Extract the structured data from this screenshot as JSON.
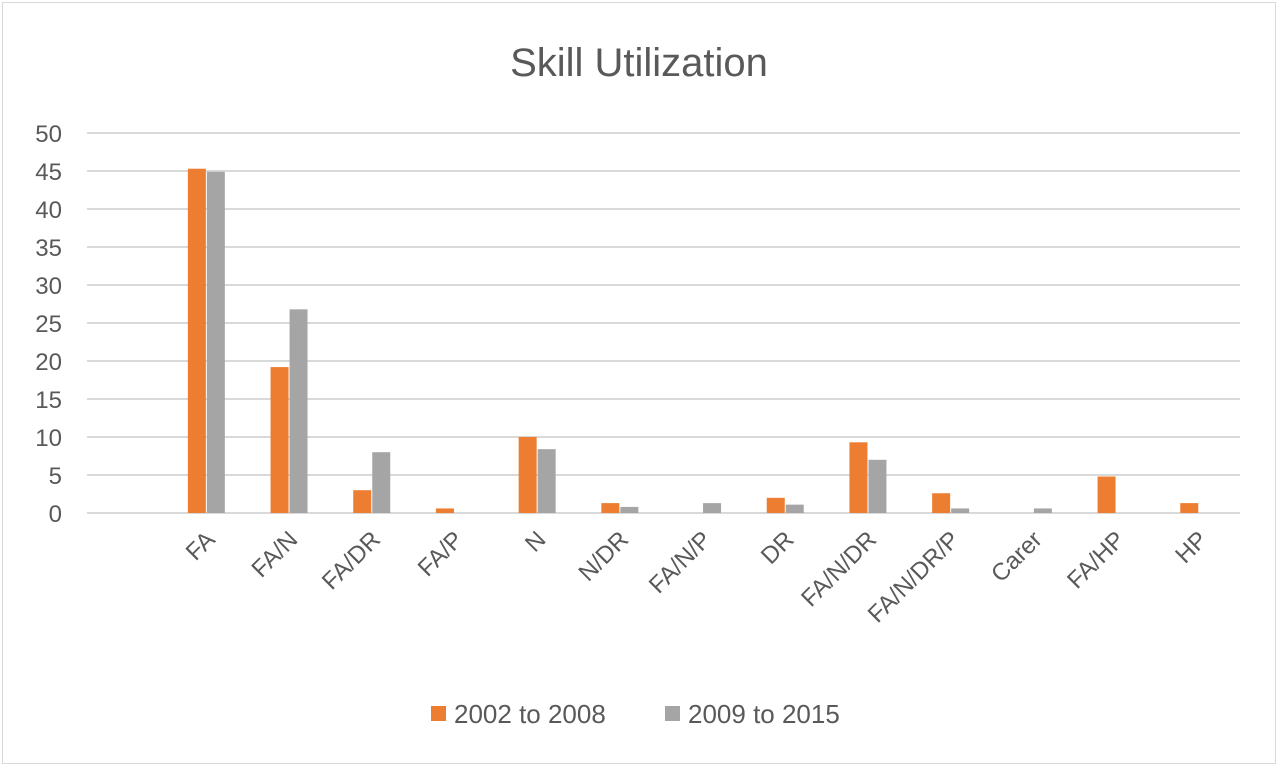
{
  "chart_data": {
    "type": "bar",
    "title": "Skill Utilization",
    "xlabel": "",
    "ylabel": "",
    "ylim": [
      0,
      50
    ],
    "yticks": [
      0,
      5,
      10,
      15,
      20,
      25,
      30,
      35,
      40,
      45,
      50
    ],
    "categories": [
      "FA",
      "FA/N",
      "FA/DR",
      "FA/P",
      "N",
      "N/DR",
      "FA/N/P",
      "DR",
      "FA/N/DR",
      "FA/N/DR/P",
      "Carer",
      "FA/HP",
      "HP"
    ],
    "series": [
      {
        "name": "2002 to 2008",
        "color": "#ed7d31",
        "values": [
          45.3,
          19.2,
          3.0,
          0.6,
          10.0,
          1.3,
          0,
          2.0,
          9.3,
          2.6,
          0,
          4.8,
          1.3
        ]
      },
      {
        "name": "2009 to 2015",
        "color": "#a5a5a5",
        "values": [
          44.9,
          26.8,
          8.0,
          0,
          8.4,
          0.8,
          1.3,
          1.1,
          7.0,
          0.6,
          0.6,
          0,
          0
        ]
      }
    ],
    "grid": true,
    "legend_position": "bottom"
  }
}
